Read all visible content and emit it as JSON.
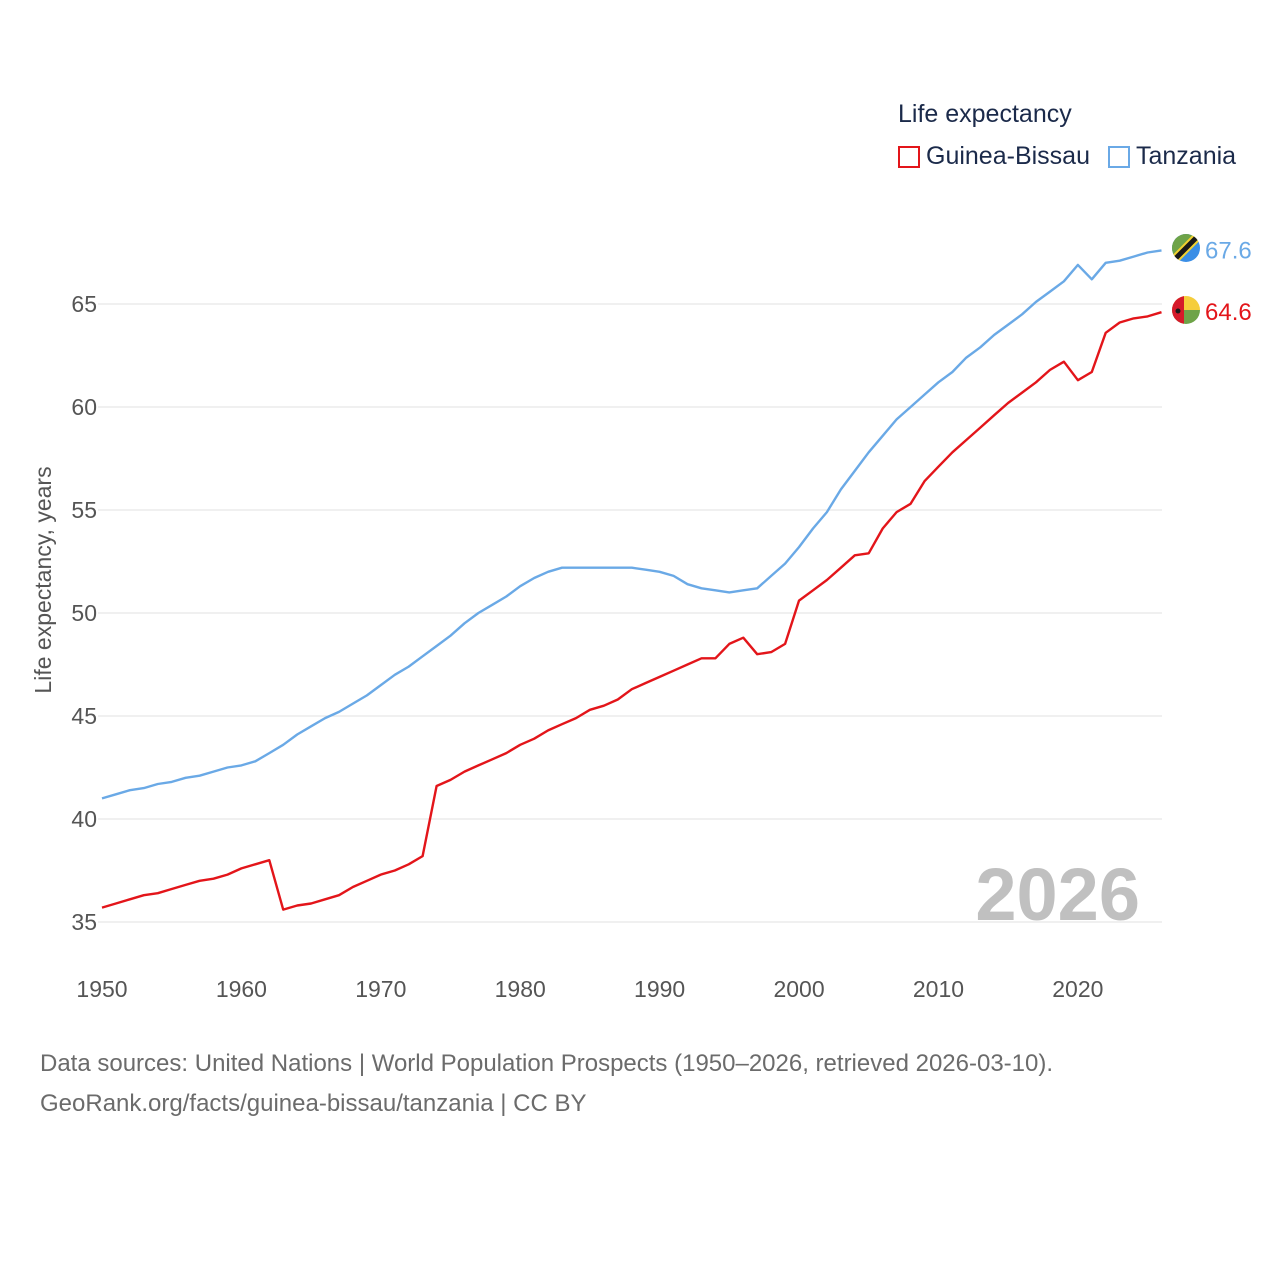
{
  "legend": {
    "title": "Life expectancy",
    "items": [
      {
        "label": "Guinea-Bissau",
        "color": "#e3151a"
      },
      {
        "label": "Tanzania",
        "color": "#6aa9e6"
      }
    ]
  },
  "source": {
    "line1": "Data sources: United Nations | World Population Prospects (1950–2026, retrieved 2026-03-10).",
    "line2": "GeoRank.org/facts/guinea-bissau/tanzania | CC BY"
  },
  "chart_data": {
    "type": "line",
    "title": "Life expectancy",
    "ylabel": "Life expectancy, years",
    "xlabel": "",
    "xlim": [
      1950,
      2026
    ],
    "ylim": [
      34.5,
      68
    ],
    "xticks": [
      1950,
      1960,
      1970,
      1980,
      1990,
      2000,
      2010,
      2020
    ],
    "yticks": [
      35,
      40,
      45,
      50,
      55,
      60,
      65
    ],
    "year_label": "2026",
    "grid": true,
    "x": [
      1950,
      1951,
      1952,
      1953,
      1954,
      1955,
      1956,
      1957,
      1958,
      1959,
      1960,
      1961,
      1962,
      1963,
      1964,
      1965,
      1966,
      1967,
      1968,
      1969,
      1970,
      1971,
      1972,
      1973,
      1974,
      1975,
      1976,
      1977,
      1978,
      1979,
      1980,
      1981,
      1982,
      1983,
      1984,
      1985,
      1986,
      1987,
      1988,
      1989,
      1990,
      1991,
      1992,
      1993,
      1994,
      1995,
      1996,
      1997,
      1998,
      1999,
      2000,
      2001,
      2002,
      2003,
      2004,
      2005,
      2006,
      2007,
      2008,
      2009,
      2010,
      2011,
      2012,
      2013,
      2014,
      2015,
      2016,
      2017,
      2018,
      2019,
      2020,
      2021,
      2022,
      2023,
      2024,
      2025,
      2026
    ],
    "series": [
      {
        "name": "Guinea-Bissau",
        "color": "#e3151a",
        "end_label": "64.6",
        "values": [
          35.7,
          35.9,
          36.1,
          36.3,
          36.4,
          36.6,
          36.8,
          37.0,
          37.1,
          37.3,
          37.6,
          37.8,
          38.0,
          35.6,
          35.8,
          35.9,
          36.1,
          36.3,
          36.7,
          37.0,
          37.3,
          37.5,
          37.8,
          38.2,
          41.6,
          41.9,
          42.3,
          42.6,
          42.9,
          43.2,
          43.6,
          43.9,
          44.3,
          44.6,
          44.9,
          45.3,
          45.5,
          45.8,
          46.3,
          46.6,
          46.9,
          47.2,
          47.5,
          47.8,
          47.8,
          48.5,
          48.8,
          48.0,
          48.1,
          48.5,
          50.6,
          51.1,
          51.6,
          52.2,
          52.8,
          52.9,
          54.1,
          54.9,
          55.3,
          56.4,
          57.1,
          57.8,
          58.4,
          59.0,
          59.6,
          60.2,
          60.7,
          61.2,
          61.8,
          62.2,
          61.3,
          61.7,
          63.6,
          64.1,
          64.3,
          64.4,
          64.6
        ]
      },
      {
        "name": "Tanzania",
        "color": "#6aa9e6",
        "end_label": "67.6",
        "values": [
          41.0,
          41.2,
          41.4,
          41.5,
          41.7,
          41.8,
          42.0,
          42.1,
          42.3,
          42.5,
          42.6,
          42.8,
          43.2,
          43.6,
          44.1,
          44.5,
          44.9,
          45.2,
          45.6,
          46.0,
          46.5,
          47.0,
          47.4,
          47.9,
          48.4,
          48.9,
          49.5,
          50.0,
          50.4,
          50.8,
          51.3,
          51.7,
          52.0,
          52.2,
          52.2,
          52.2,
          52.2,
          52.2,
          52.2,
          52.1,
          52.0,
          51.8,
          51.4,
          51.2,
          51.1,
          51.0,
          51.1,
          51.2,
          51.8,
          52.4,
          53.2,
          54.1,
          54.9,
          56.0,
          56.9,
          57.8,
          58.6,
          59.4,
          60.0,
          60.6,
          61.2,
          61.7,
          62.4,
          62.9,
          63.5,
          64.0,
          64.5,
          65.1,
          65.6,
          66.1,
          66.9,
          66.2,
          67.0,
          67.1,
          67.3,
          67.5,
          67.6
        ]
      }
    ]
  }
}
